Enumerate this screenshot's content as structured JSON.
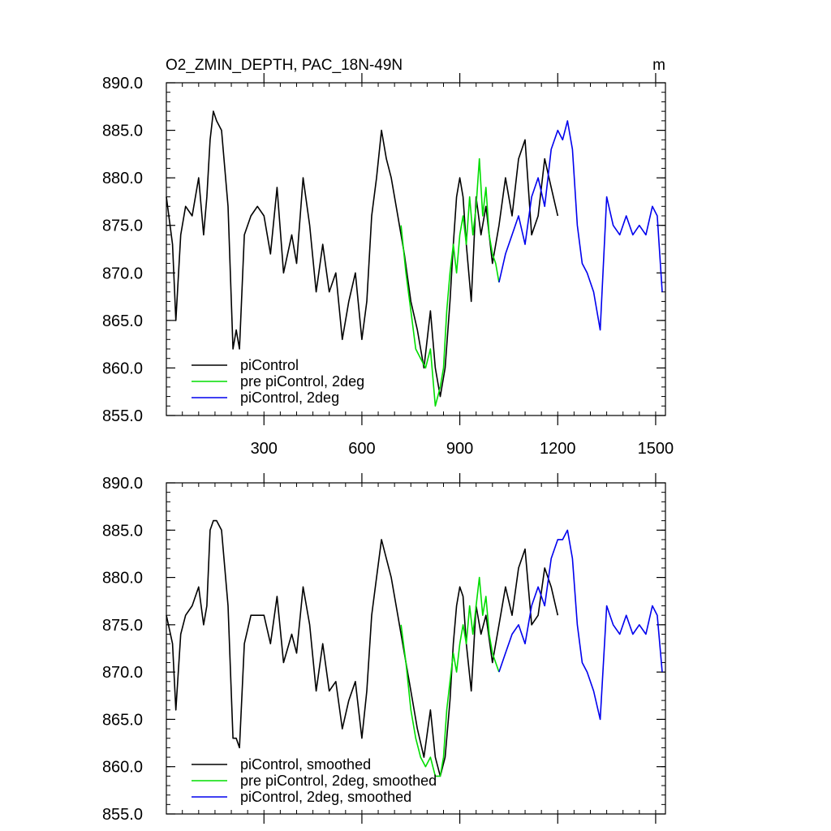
{
  "chart_data": [
    {
      "type": "line",
      "title": "O2_ZMIN_DEPTH, PAC_18N-49N",
      "units": "m",
      "xlim": [
        1,
        1530
      ],
      "ylim": [
        855,
        890
      ],
      "xticks": [
        300,
        600,
        900,
        1200,
        1500
      ],
      "xtick_labels": [
        "300",
        "600",
        "900",
        "1200",
        "1500"
      ],
      "yticks": [
        855,
        860,
        865,
        870,
        875,
        880,
        885,
        890
      ],
      "ytick_labels": [
        "855.0",
        "860.0",
        "865.0",
        "870.0",
        "875.0",
        "880.0",
        "885.0",
        "890.0"
      ],
      "legend_position": "bottom-left",
      "series": [
        {
          "name": "piControl",
          "color": "#000000",
          "x": [
            1,
            20,
            30,
            45,
            60,
            80,
            100,
            115,
            125,
            135,
            145,
            155,
            170,
            190,
            205,
            215,
            225,
            240,
            260,
            280,
            300,
            320,
            340,
            360,
            385,
            400,
            420,
            440,
            460,
            480,
            500,
            520,
            540,
            560,
            580,
            600,
            615,
            630,
            645,
            660,
            675,
            690,
            710,
            730,
            750,
            770,
            790,
            810,
            825,
            840,
            855,
            870,
            880,
            890,
            900,
            910,
            920,
            935,
            950,
            965,
            980,
            1000,
            1020,
            1040,
            1060,
            1080,
            1100,
            1120,
            1140,
            1160,
            1180,
            1200
          ],
          "y": [
            878,
            873,
            865,
            874,
            877,
            876,
            880,
            874,
            878,
            884,
            887,
            886,
            885,
            877,
            862,
            864,
            862,
            874,
            876,
            877,
            876,
            872,
            879,
            870,
            874,
            871,
            880,
            875,
            868,
            873,
            868,
            870,
            863,
            867,
            870,
            863,
            867,
            876,
            880,
            885,
            882,
            880,
            876,
            872,
            867,
            864,
            860,
            866,
            860,
            857,
            860,
            867,
            873,
            878,
            880,
            878,
            873,
            867,
            878,
            874,
            877,
            871,
            875,
            880,
            876,
            882,
            884,
            874,
            876,
            882,
            879,
            876
          ]
        },
        {
          "name": "pre piControl, 2deg",
          "color": "#00dd00",
          "x": [
            720,
            735,
            750,
            765,
            780,
            795,
            810,
            825,
            840,
            850,
            860,
            870,
            880,
            890,
            900,
            910,
            920,
            930,
            940,
            950,
            960,
            970,
            980,
            990,
            1000,
            1010,
            1020
          ],
          "y": [
            875,
            870,
            866,
            862,
            861,
            860,
            862,
            856,
            858,
            860,
            866,
            870,
            873,
            870,
            874,
            876,
            873,
            878,
            874,
            877,
            882,
            876,
            879,
            874,
            872,
            871,
            869
          ]
        },
        {
          "name": "piControl, 2deg",
          "color": "#0000ee",
          "x": [
            1020,
            1040,
            1060,
            1080,
            1100,
            1120,
            1140,
            1160,
            1180,
            1200,
            1215,
            1230,
            1245,
            1260,
            1275,
            1290,
            1310,
            1330,
            1350,
            1370,
            1390,
            1410,
            1430,
            1450,
            1470,
            1490,
            1505,
            1520
          ],
          "y": [
            869,
            872,
            874,
            876,
            873,
            878,
            880,
            877,
            883,
            885,
            884,
            886,
            883,
            875,
            871,
            870,
            868,
            864,
            878,
            875,
            874,
            876,
            874,
            875,
            874,
            877,
            876,
            868
          ]
        }
      ]
    },
    {
      "type": "line",
      "title": "",
      "xlim": [
        1,
        1530
      ],
      "ylim": [
        855,
        890
      ],
      "xticks": [
        300,
        600,
        900,
        1200,
        1500
      ],
      "yticks": [
        855,
        860,
        865,
        870,
        875,
        880,
        885,
        890
      ],
      "ytick_labels": [
        "855.0",
        "860.0",
        "865.0",
        "870.0",
        "875.0",
        "880.0",
        "885.0",
        "890.0"
      ],
      "legend_position": "bottom-left",
      "series": [
        {
          "name": "piControl, smoothed",
          "color": "#000000",
          "x": [
            1,
            20,
            30,
            45,
            60,
            80,
            100,
            115,
            125,
            135,
            145,
            155,
            170,
            190,
            205,
            215,
            225,
            240,
            260,
            280,
            300,
            320,
            340,
            360,
            385,
            400,
            420,
            440,
            460,
            480,
            500,
            520,
            540,
            560,
            580,
            600,
            615,
            630,
            645,
            660,
            675,
            690,
            710,
            730,
            750,
            770,
            790,
            810,
            825,
            840,
            855,
            870,
            880,
            890,
            900,
            910,
            920,
            935,
            950,
            965,
            980,
            1000,
            1020,
            1040,
            1060,
            1080,
            1100,
            1120,
            1140,
            1160,
            1180,
            1200
          ],
          "y": [
            876,
            873,
            866,
            874,
            876,
            877,
            879,
            875,
            877,
            885,
            886,
            886,
            885,
            877,
            863,
            863,
            862,
            873,
            876,
            876,
            876,
            873,
            878,
            871,
            874,
            872,
            879,
            875,
            868,
            873,
            868,
            869,
            864,
            867,
            869,
            863,
            868,
            876,
            880,
            884,
            882,
            880,
            876,
            872,
            868,
            864,
            861,
            866,
            861,
            859,
            861,
            867,
            873,
            877,
            879,
            878,
            873,
            868,
            877,
            874,
            876,
            871,
            875,
            879,
            876,
            881,
            883,
            875,
            876,
            881,
            879,
            876
          ]
        },
        {
          "name": "pre piControl, 2deg, smoothed",
          "color": "#00dd00",
          "x": [
            720,
            735,
            750,
            765,
            780,
            795,
            810,
            825,
            840,
            850,
            860,
            870,
            880,
            890,
            900,
            910,
            920,
            930,
            940,
            950,
            960,
            970,
            980,
            990,
            1000,
            1010,
            1020
          ],
          "y": [
            875,
            871,
            866,
            863,
            861,
            860,
            861,
            859,
            859,
            861,
            866,
            869,
            872,
            870,
            873,
            875,
            873,
            877,
            874,
            877,
            880,
            876,
            878,
            874,
            872,
            871,
            870
          ]
        },
        {
          "name": "piControl, 2deg, smoothed",
          "color": "#0000ee",
          "x": [
            1020,
            1040,
            1060,
            1080,
            1100,
            1120,
            1140,
            1160,
            1180,
            1200,
            1215,
            1230,
            1245,
            1260,
            1275,
            1290,
            1310,
            1330,
            1350,
            1370,
            1390,
            1410,
            1430,
            1450,
            1470,
            1490,
            1505,
            1520
          ],
          "y": [
            870,
            872,
            874,
            875,
            873,
            877,
            879,
            877,
            882,
            884,
            884,
            885,
            882,
            875,
            871,
            870,
            868,
            865,
            877,
            875,
            874,
            876,
            874,
            875,
            874,
            877,
            876,
            870
          ]
        }
      ]
    }
  ]
}
